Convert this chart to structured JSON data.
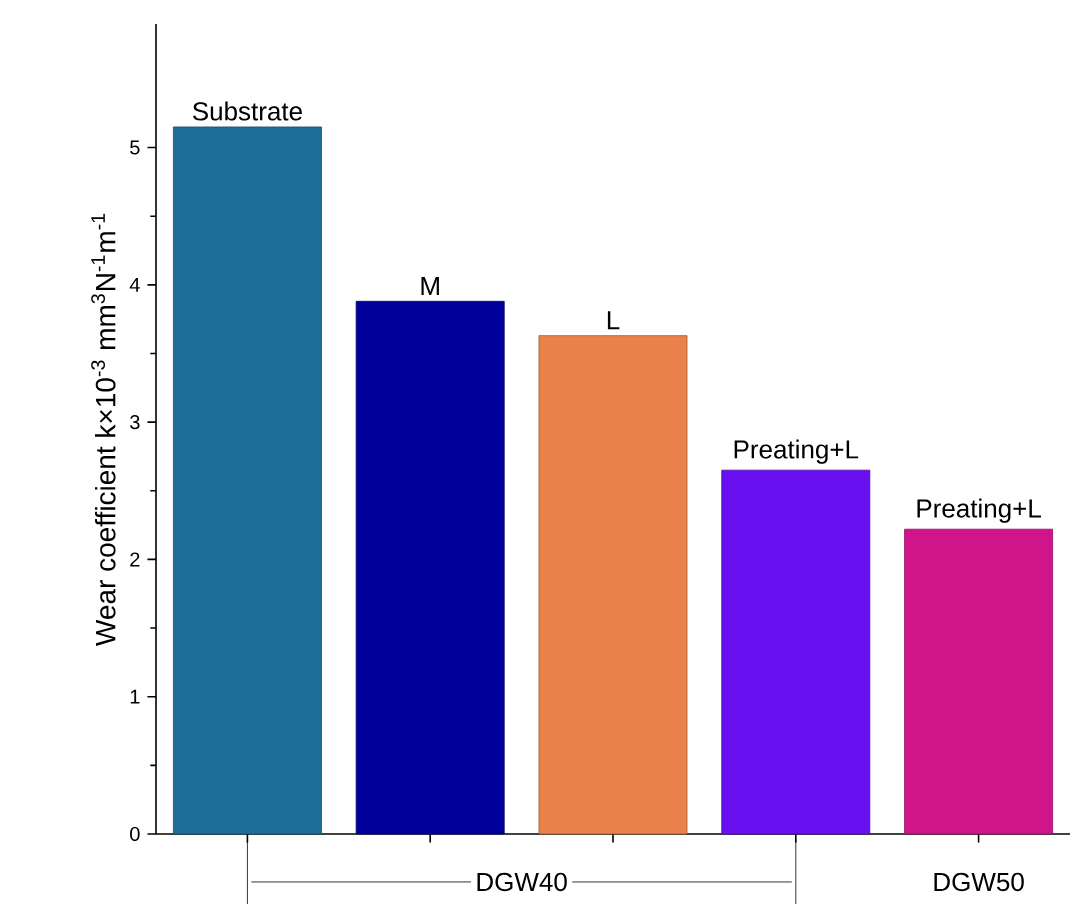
{
  "chart_data": {
    "type": "bar",
    "ylabel": "Wear coefficient k×10$^{-3}$ mm$^{3}$N$^{-1}$m$^{-1}$",
    "categories": [
      "Substrate",
      "M",
      "L",
      "Preating+L",
      "Preating+L"
    ],
    "values": [
      5.15,
      3.88,
      3.63,
      2.65,
      2.22
    ],
    "colors": [
      "#1f6e9a",
      "#00009a",
      "#e8824a",
      "#6a10f0",
      "#d0158a"
    ],
    "ylim": [
      0,
      5.9
    ],
    "yticks": [
      0,
      1,
      2,
      3,
      4,
      5
    ],
    "annotations": [
      "DGW40",
      "DGW50"
    ]
  }
}
